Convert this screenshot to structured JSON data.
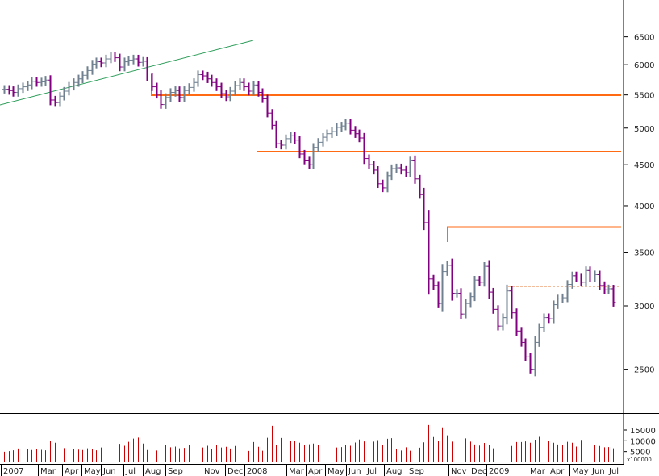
{
  "chart_data": {
    "type": "bar",
    "subtype": "ohlc",
    "price_scale": "log",
    "ylim": [
      2150,
      7000
    ],
    "y_ticks": [
      "2500",
      "3000",
      "3500",
      "4000",
      "4500",
      "5000",
      "5500",
      "6000",
      "6500"
    ],
    "bar_colors": {
      "up": "#708090",
      "down": "#800080"
    },
    "x_labels": [
      "2007",
      "Mar",
      "Apr",
      "May",
      "Jun",
      "Jul",
      "Aug",
      "Sep",
      "Nov",
      "Dec",
      "2008",
      "Mar",
      "Apr",
      "May",
      "Jun",
      "Jul",
      "Aug",
      "Sep",
      "Nov",
      "Dec",
      "2009",
      "Mar",
      "Apr",
      "May",
      "Jun",
      "Jul"
    ],
    "volume_ticks": [
      "5000",
      "10000",
      "15000"
    ],
    "volume_unit": "x100000",
    "volume_color": "#cc0000",
    "weekly_closes": [
      5590,
      5570,
      5540,
      5600,
      5630,
      5660,
      5720,
      5700,
      5710,
      5740,
      5420,
      5380,
      5480,
      5560,
      5640,
      5700,
      5760,
      5820,
      5900,
      6010,
      6050,
      6030,
      6100,
      6150,
      6120,
      5960,
      6050,
      6080,
      6100,
      6040,
      6060,
      5790,
      5630,
      5510,
      5350,
      5460,
      5540,
      5570,
      5460,
      5570,
      5620,
      5700,
      5830,
      5810,
      5760,
      5700,
      5630,
      5520,
      5470,
      5560,
      5650,
      5700,
      5630,
      5560,
      5660,
      5540,
      5440,
      5220,
      5040,
      4780,
      4760,
      4850,
      4890,
      4830,
      4640,
      4560,
      4500,
      4730,
      4800,
      4870,
      4920,
      4950,
      5010,
      5030,
      5070,
      4970,
      4920,
      4860,
      4580,
      4500,
      4430,
      4260,
      4210,
      4360,
      4450,
      4460,
      4430,
      4400,
      4560,
      4320,
      4130,
      3810,
      3240,
      3180,
      3020,
      3310,
      3370,
      3110,
      3110,
      2930,
      3020,
      3080,
      3230,
      3210,
      3360,
      3120,
      2970,
      2830,
      2900,
      3130,
      2940,
      2790,
      2700,
      2590,
      2500,
      2700,
      2820,
      2900,
      2890,
      3010,
      3060,
      3070,
      3190,
      3270,
      3250,
      3210,
      3320,
      3250,
      3280,
      3180,
      3140,
      3150,
      3030
    ],
    "weekly_volumes": [
      4900,
      5200,
      5600,
      6400,
      5900,
      6100,
      5700,
      6300,
      5800,
      5600,
      9800,
      9100,
      7200,
      6600,
      5400,
      6200,
      5900,
      5700,
      6500,
      6300,
      5600,
      6900,
      5800,
      6800,
      6100,
      8600,
      7700,
      9500,
      11000,
      11500,
      8700,
      5700,
      8200,
      5500,
      6600,
      7900,
      7000,
      7300,
      6500,
      6700,
      8000,
      7300,
      7100,
      6900,
      7700,
      6200,
      8000,
      6900,
      7200,
      6400,
      7600,
      6400,
      8500,
      5300,
      9400,
      7200,
      5400,
      11400,
      16900,
      8000,
      11300,
      14400,
      10100,
      10000,
      9100,
      8100,
      8400,
      8700,
      8000,
      6200,
      7600,
      6400,
      6900,
      7100,
      8100,
      7700,
      9200,
      10600,
      9700,
      11400,
      9600,
      10300,
      8000,
      10900,
      11200,
      6000,
      5500,
      7000,
      5400,
      5900,
      6800,
      9300,
      17300,
      11700,
      10000,
      16200,
      12500,
      9600,
      10100,
      13500,
      11100,
      9600,
      8300,
      7800,
      9000,
      8100,
      6500,
      7100,
      9100,
      7000,
      7600,
      9400,
      9400,
      9700,
      9100,
      10500,
      11800,
      10900,
      9800,
      9100,
      8300,
      7900,
      9500,
      9100,
      7300,
      10400,
      8300,
      6000,
      8000,
      7600,
      7000,
      7100,
      6500
    ]
  }
}
